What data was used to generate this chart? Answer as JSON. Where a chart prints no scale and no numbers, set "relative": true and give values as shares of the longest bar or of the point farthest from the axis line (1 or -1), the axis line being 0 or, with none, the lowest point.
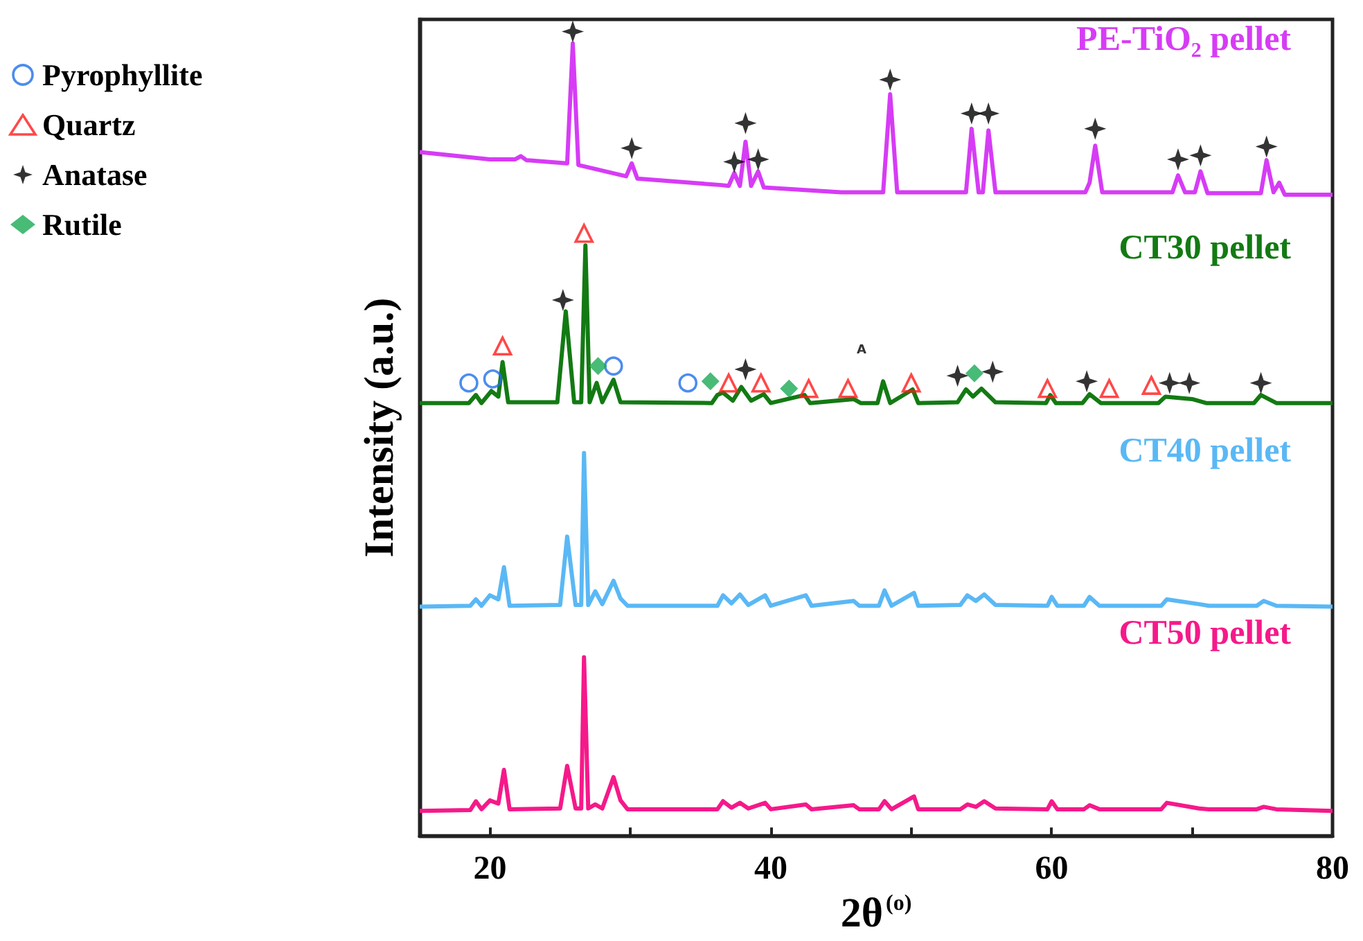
{
  "chart_data": {
    "type": "line",
    "relative": true,
    "xlabel": "2θ$^{(o)}$",
    "ylabel": "Intensity (a.u.)",
    "xlim": [
      15,
      80
    ],
    "xticks": [
      20,
      {
        "value": 30,
        "label": null
      },
      40,
      {
        "value": 50,
        "label": null
      },
      60,
      {
        "value": 70,
        "label": null
      },
      80
    ],
    "legend": "left",
    "grid": false,
    "annotations": [
      "A"
    ],
    "series": [
      {
        "name": "PE-TiO₂ pellet",
        "type": "line",
        "color": "#d63cf5",
        "x": [
          15,
          20,
          21.8,
          22.2,
          22.6,
          25.5,
          25.9,
          26.3,
          27.5,
          29.7,
          30.1,
          30.5,
          36.5,
          37.0,
          37.4,
          37.8,
          38.2,
          38.6,
          39.1,
          39.5,
          45,
          48.0,
          48.5,
          49.0,
          53.9,
          54.3,
          54.8,
          55.1,
          55.5,
          56.0,
          62.4,
          62.7,
          63.1,
          63.6,
          68.6,
          69.0,
          69.5,
          70.2,
          70.6,
          71.1,
          74.9,
          75.3,
          75.8,
          76.2,
          76.6,
          80
        ],
        "values": [
          0.85,
          0.841,
          0.841,
          0.845,
          0.84,
          0.836,
          0.985,
          0.834,
          0.829,
          0.82,
          0.836,
          0.817,
          0.809,
          0.808,
          0.824,
          0.808,
          0.863,
          0.808,
          0.826,
          0.806,
          0.8,
          0.8,
          0.922,
          0.8,
          0.8,
          0.879,
          0.8,
          0.8,
          0.877,
          0.8,
          0.8,
          0.812,
          0.858,
          0.8,
          0.8,
          0.821,
          0.8,
          0.8,
          0.826,
          0.799,
          0.799,
          0.84,
          0.8,
          0.812,
          0.797,
          0.797
        ]
      },
      {
        "name": "CT30 pellet",
        "type": "line",
        "color": "#137a13",
        "x": [
          15,
          18.5,
          19.0,
          19.4,
          20.1,
          20.6,
          20.9,
          21.3,
          24.8,
          25.4,
          26.0,
          26.5,
          26.8,
          27.1,
          27.6,
          28.0,
          28.8,
          29.3,
          35.8,
          36.2,
          36.6,
          37.3,
          37.9,
          38.6,
          39.5,
          40.0,
          42.4,
          42.8,
          45.9,
          46.4,
          47.6,
          48.0,
          48.5,
          50.1,
          50.5,
          53.3,
          53.9,
          54.4,
          55.0,
          56.0,
          59.6,
          59.9,
          60.3,
          62.2,
          62.7,
          63.5,
          67.6,
          68.1,
          70.0,
          71.0,
          74.4,
          74.9,
          76.0,
          80
        ],
        "values": [
          0.538,
          0.538,
          0.548,
          0.538,
          0.553,
          0.546,
          0.589,
          0.539,
          0.539,
          0.652,
          0.539,
          0.539,
          0.734,
          0.539,
          0.563,
          0.539,
          0.567,
          0.539,
          0.538,
          0.548,
          0.551,
          0.541,
          0.558,
          0.541,
          0.549,
          0.538,
          0.548,
          0.538,
          0.543,
          0.538,
          0.538,
          0.565,
          0.538,
          0.555,
          0.538,
          0.539,
          0.555,
          0.546,
          0.556,
          0.539,
          0.538,
          0.548,
          0.538,
          0.538,
          0.549,
          0.538,
          0.538,
          0.546,
          0.543,
          0.538,
          0.538,
          0.548,
          0.538,
          0.538
        ]
      },
      {
        "name": "CT40 pellet",
        "type": "line",
        "color": "#5ab8f5",
        "x": [
          15,
          18.6,
          19.0,
          19.4,
          20.0,
          20.6,
          21.0,
          21.4,
          25.0,
          25.5,
          26.1,
          26.5,
          26.7,
          27.0,
          27.5,
          28.0,
          28.8,
          29.3,
          29.8,
          36.2,
          36.6,
          37.2,
          37.8,
          38.4,
          39.6,
          40.0,
          42.5,
          42.9,
          45.9,
          46.3,
          47.7,
          48.1,
          48.6,
          50.2,
          50.5,
          53.5,
          54.0,
          54.6,
          55.2,
          56.0,
          59.7,
          60.0,
          60.4,
          62.3,
          62.7,
          63.4,
          67.8,
          68.2,
          70.5,
          71.2,
          74.6,
          75.1,
          76,
          80
        ],
        "values": [
          0.285,
          0.286,
          0.294,
          0.286,
          0.299,
          0.294,
          0.334,
          0.286,
          0.287,
          0.372,
          0.287,
          0.287,
          0.476,
          0.287,
          0.304,
          0.288,
          0.317,
          0.295,
          0.286,
          0.286,
          0.299,
          0.289,
          0.3,
          0.287,
          0.299,
          0.286,
          0.299,
          0.286,
          0.292,
          0.286,
          0.286,
          0.305,
          0.286,
          0.302,
          0.286,
          0.287,
          0.299,
          0.292,
          0.3,
          0.287,
          0.286,
          0.297,
          0.286,
          0.286,
          0.297,
          0.286,
          0.286,
          0.294,
          0.288,
          0.286,
          0.286,
          0.292,
          0.286,
          0.285
        ]
      },
      {
        "name": "CT50 pellet",
        "type": "line",
        "color": "#f5198a",
        "x": [
          15,
          18.6,
          19.0,
          19.4,
          20.0,
          20.6,
          21.0,
          21.4,
          25.0,
          25.5,
          26.1,
          26.5,
          26.7,
          27.0,
          27.5,
          28.0,
          28.8,
          29.3,
          29.8,
          36.2,
          36.6,
          37.2,
          37.8,
          38.4,
          39.6,
          40.0,
          42.5,
          42.9,
          45.9,
          46.3,
          47.7,
          48.1,
          48.6,
          50.2,
          50.5,
          53.5,
          54.0,
          54.6,
          55.2,
          56.0,
          59.7,
          60.0,
          60.4,
          62.3,
          62.7,
          63.4,
          67.8,
          68.2,
          70.5,
          71.2,
          74.6,
          75.1,
          76,
          80
        ],
        "values": [
          0.031,
          0.032,
          0.043,
          0.033,
          0.044,
          0.04,
          0.082,
          0.033,
          0.034,
          0.087,
          0.034,
          0.034,
          0.222,
          0.034,
          0.039,
          0.034,
          0.073,
          0.044,
          0.033,
          0.033,
          0.043,
          0.035,
          0.041,
          0.034,
          0.041,
          0.033,
          0.039,
          0.033,
          0.038,
          0.033,
          0.033,
          0.043,
          0.033,
          0.049,
          0.033,
          0.033,
          0.039,
          0.036,
          0.043,
          0.034,
          0.033,
          0.043,
          0.033,
          0.033,
          0.038,
          0.033,
          0.033,
          0.041,
          0.034,
          0.033,
          0.033,
          0.036,
          0.033,
          0.031
        ]
      },
      {
        "name": "Pyrophyllite",
        "type": "scatter",
        "marker": "circle",
        "color": "#1f6fe8",
        "x": [
          18.5,
          20.2,
          28.8,
          34.1
        ],
        "values": [
          0.563,
          0.568,
          0.584,
          0.563
        ]
      },
      {
        "name": "Quartz",
        "type": "scatter",
        "marker": "triangle",
        "color": "#ff1a1a",
        "x": [
          20.9,
          26.7,
          37.0,
          39.3,
          42.7,
          45.5,
          50.0,
          59.7,
          64.1,
          67.1
        ],
        "values": [
          0.609,
          0.749,
          0.563,
          0.563,
          0.556,
          0.556,
          0.563,
          0.556,
          0.556,
          0.56
        ]
      },
      {
        "name": "Anatase",
        "type": "scatter",
        "marker": "star",
        "color": "#000000",
        "x": [
          25.9,
          30.1,
          37.4,
          38.2,
          39.1,
          48.5,
          54.3,
          55.5,
          63.1,
          69.0,
          70.6,
          75.3,
          25.2,
          38.2,
          53.3,
          55.8,
          62.5,
          68.4,
          69.8,
          74.9
        ],
        "values": [
          1.0,
          0.855,
          0.838,
          0.886,
          0.841,
          0.94,
          0.898,
          0.898,
          0.879,
          0.841,
          0.846,
          0.857,
          0.666,
          0.58,
          0.572,
          0.577,
          0.565,
          0.563,
          0.563,
          0.563
        ]
      },
      {
        "name": "Rutile",
        "type": "scatter",
        "marker": "diamond",
        "color": "#1aaa55",
        "x": [
          27.7,
          35.7,
          41.3,
          54.5
        ],
        "values": [
          0.584,
          0.565,
          0.556,
          0.575
        ]
      }
    ]
  }
}
